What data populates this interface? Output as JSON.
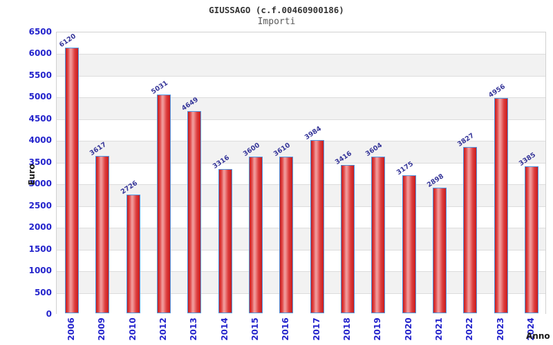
{
  "title": "GIUSSAGO (c.f.00460900186)",
  "subtitle": "Importi",
  "colors": {
    "bar_fill": "#e03131",
    "bar_highlight": "#f19e9e",
    "bar_border": "#4f97e3",
    "tick_label": "#2424cc",
    "value_label": "#363699",
    "band_stripe": "#f2f2f2",
    "gridline": "#dcdcdc"
  },
  "chart_data": {
    "type": "bar",
    "title": "GIUSSAGO (c.f.00460900186)",
    "subtitle": "Importi",
    "xlabel": "Anno",
    "ylabel": "Euro",
    "categories": [
      "2006",
      "2009",
      "2010",
      "2012",
      "2013",
      "2014",
      "2015",
      "2016",
      "2017",
      "2018",
      "2019",
      "2020",
      "2021",
      "2022",
      "2023",
      "2024"
    ],
    "values": [
      6120,
      3617,
      2726,
      5031,
      4649,
      3316,
      3600,
      3610,
      3984,
      3416,
      3604,
      3175,
      2898,
      3827,
      4956,
      3385
    ],
    "ylim": [
      0,
      6500
    ],
    "ytick_step": 500,
    "grid": "horizontal-stripes",
    "legend": "none",
    "bar_labels_rotated": true,
    "xticks_rotated": true
  }
}
